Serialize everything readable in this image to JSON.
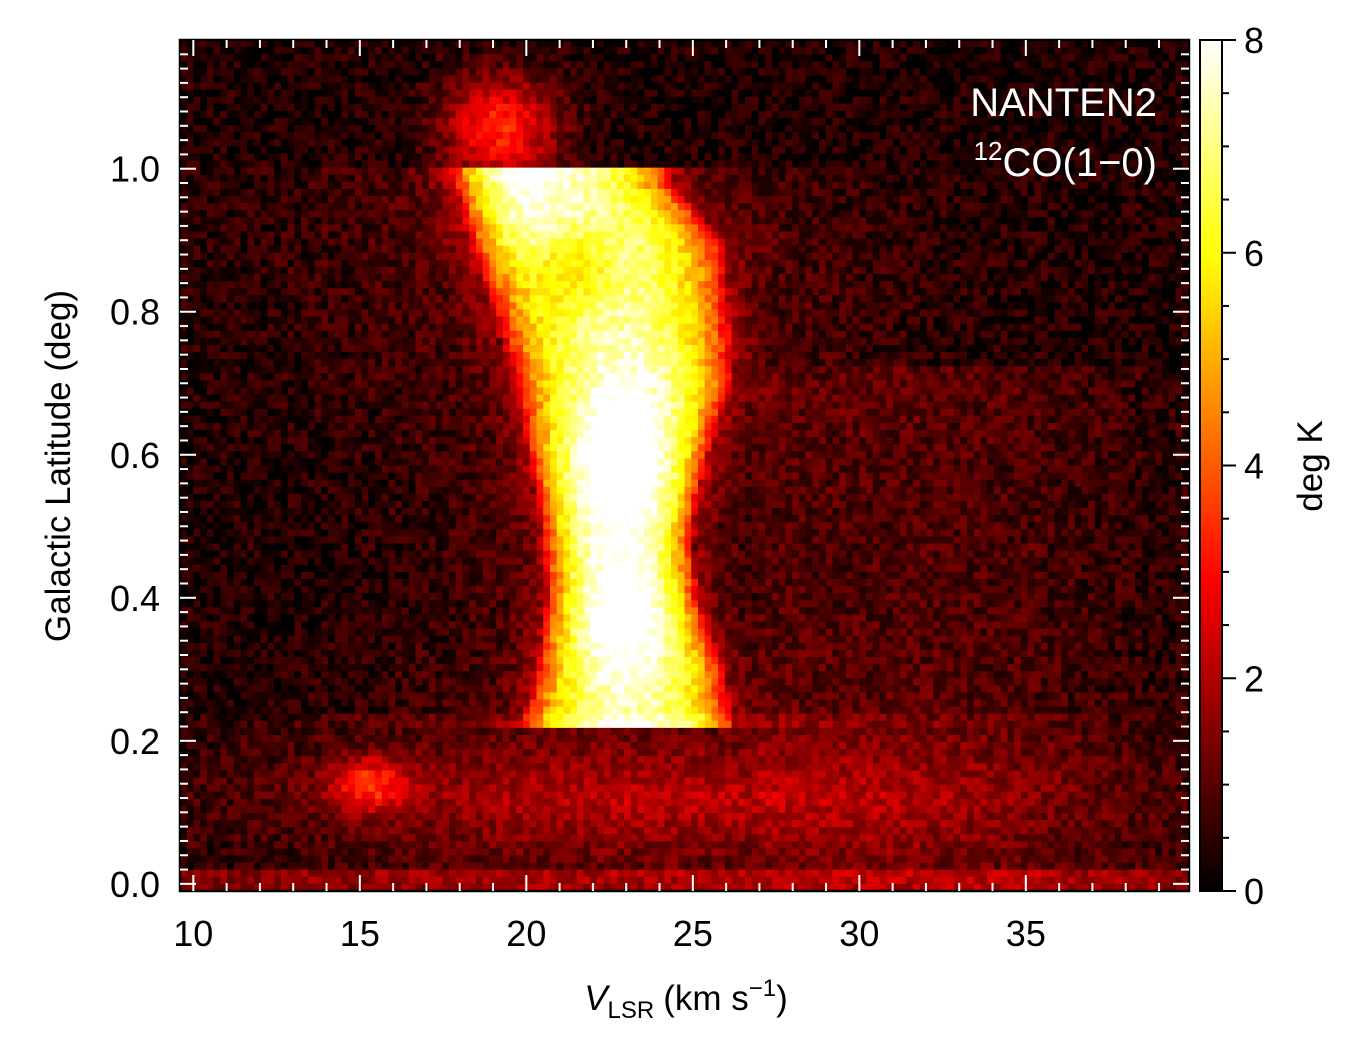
{
  "chart_data": {
    "type": "heatmap",
    "title": "",
    "annotation": {
      "line1": "NANTEN2",
      "line2_sup": "12",
      "line2_main": "CO(1−0)"
    },
    "xlabel": {
      "italic": "V",
      "sub": "LSR",
      "rest": "(km s",
      "sup": "−1",
      "close": ")"
    },
    "ylabel": "Galactic Latitude (deg)",
    "xlim": [
      9.6,
      39.9
    ],
    "ylim": [
      -0.01,
      1.18
    ],
    "xticks": [
      10,
      15,
      20,
      25,
      30,
      35
    ],
    "xticklabels": [
      "10",
      "15",
      "20",
      "25",
      "30",
      "35"
    ],
    "yticks": [
      0.0,
      0.2,
      0.4,
      0.6,
      0.8,
      1.0
    ],
    "yticklabels": [
      "0.0",
      "0.2",
      "0.4",
      "0.6",
      "0.8",
      "1.0"
    ],
    "colorbar": {
      "label": "deg K",
      "range": [
        0,
        8
      ],
      "ticks": [
        0,
        2,
        4,
        6,
        8
      ],
      "ticklabels": [
        "0",
        "2",
        "4",
        "6",
        "8"
      ],
      "colormap": "hot"
    },
    "colors": {
      "low": "#000000",
      "mid_red": "#ff0000",
      "orange": "#ff8000",
      "yellow": "#ffff00",
      "high": "#ffffff"
    },
    "emission_features": [
      {
        "description": "main filament ridge",
        "velocity_kms": [
          17.5,
          26.5
        ],
        "latitude_deg": [
          0.22,
          1.0
        ],
        "peak_K": 8
      },
      {
        "description": "upper cap",
        "velocity_kms": [
          18.0,
          20.5
        ],
        "latitude_deg": [
          1.0,
          1.12
        ],
        "peak_K": 4
      },
      {
        "description": "compact clump",
        "velocity_kms": [
          14.5,
          16.5
        ],
        "latitude_deg": [
          0.1,
          0.17
        ],
        "peak_K": 3
      },
      {
        "description": "broad low-latitude emission",
        "velocity_kms": [
          13.0,
          38.0
        ],
        "latitude_deg": [
          0.0,
          0.22
        ],
        "peak_K": 2
      }
    ]
  }
}
